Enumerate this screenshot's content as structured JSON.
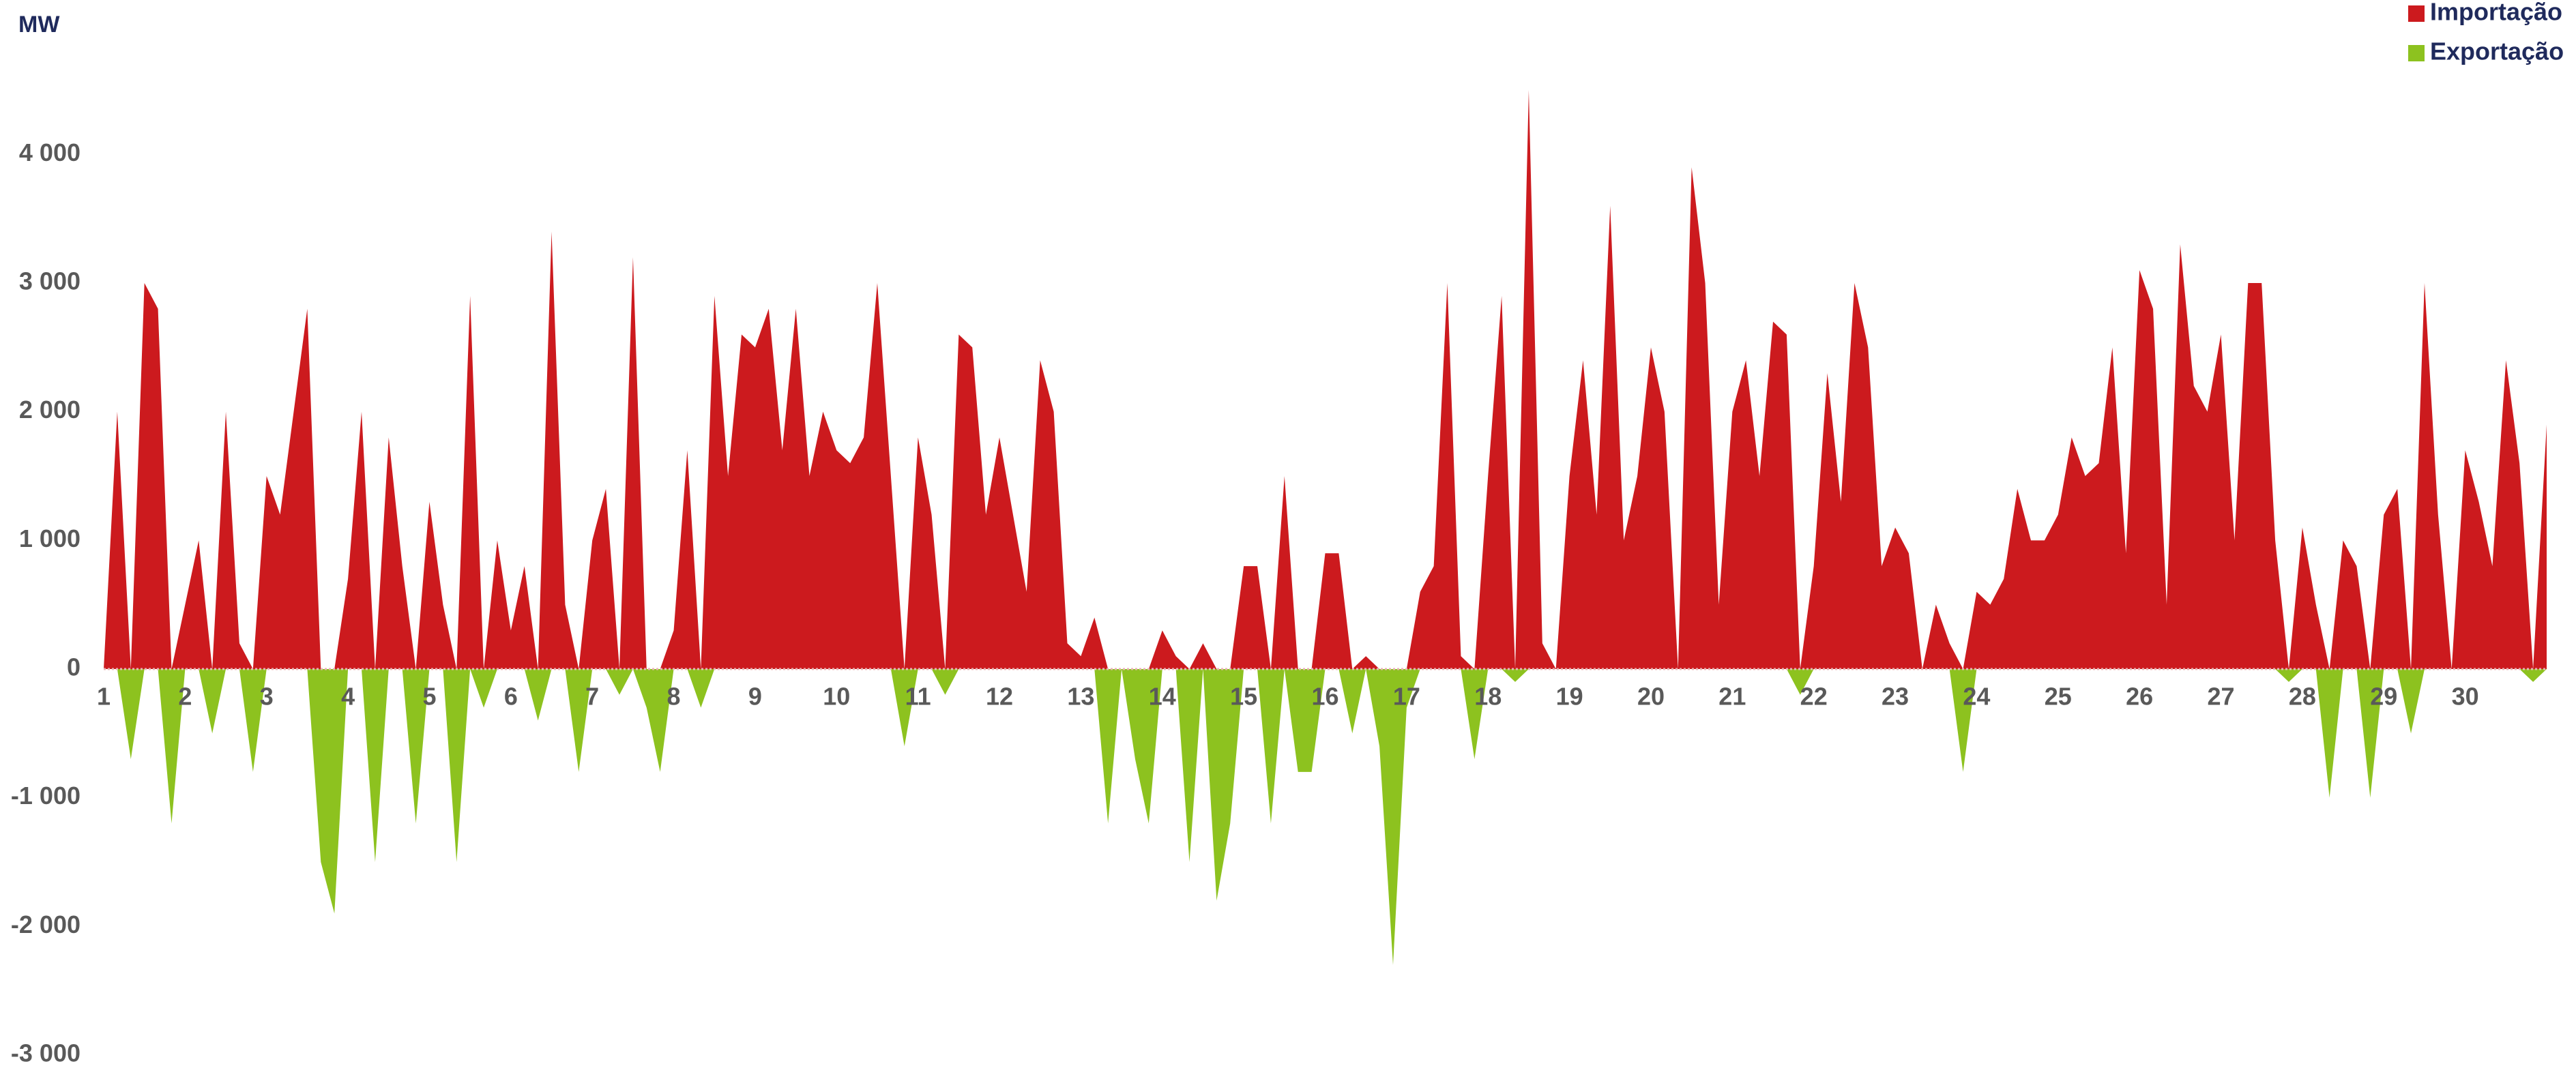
{
  "chart_data": {
    "type": "area",
    "y_label": "MW",
    "x": [
      0,
      4,
      8,
      12,
      16,
      20,
      24,
      28,
      32,
      36,
      40,
      44,
      48,
      52,
      56,
      60,
      64,
      68,
      72,
      76,
      80,
      84,
      88,
      92,
      96,
      100,
      104,
      108,
      112,
      116,
      120,
      124,
      128,
      132,
      136,
      140,
      144,
      148,
      152,
      156,
      160,
      164,
      168,
      172,
      176,
      180,
      184,
      188,
      192,
      196,
      200,
      204,
      208,
      212,
      216,
      220,
      224,
      228,
      232,
      236,
      240,
      244,
      248,
      252,
      256,
      260,
      264,
      268,
      272,
      276,
      280,
      284,
      288,
      292,
      296,
      300,
      304,
      308,
      312,
      316,
      320,
      324,
      328,
      332,
      336,
      340,
      344,
      348,
      352,
      356,
      360,
      364,
      368,
      372,
      376,
      380,
      384,
      388,
      392,
      396,
      400,
      404,
      408,
      412,
      416,
      420,
      424,
      428,
      432,
      436,
      440,
      444,
      448,
      452,
      456,
      460,
      464,
      468,
      472,
      476,
      480,
      484,
      488,
      492,
      496,
      500,
      504,
      508,
      512,
      516,
      520,
      524,
      528,
      532,
      536,
      540,
      544,
      548,
      552,
      556,
      560,
      564,
      568,
      572,
      576,
      580,
      584,
      588,
      592,
      596,
      600,
      604,
      608,
      612,
      616,
      620,
      624,
      628,
      632,
      636,
      640,
      644,
      648,
      652,
      656,
      660,
      664,
      668,
      672,
      676,
      680,
      684,
      688,
      692,
      696,
      700,
      704,
      708,
      712,
      716,
      720
    ],
    "series": [
      {
        "name": "Importação",
        "color": "#cc1a1e",
        "values": [
          0,
          2000,
          0,
          3000,
          2800,
          0,
          500,
          1000,
          0,
          2000,
          200,
          0,
          1500,
          1200,
          2000,
          2800,
          0,
          0,
          700,
          2000,
          0,
          1800,
          800,
          0,
          1300,
          500,
          0,
          2900,
          0,
          1000,
          300,
          800,
          0,
          3400,
          500,
          0,
          1000,
          1400,
          0,
          3200,
          0,
          0,
          300,
          1700,
          0,
          2900,
          1500,
          2600,
          2500,
          2800,
          1700,
          2800,
          1500,
          2000,
          1700,
          1600,
          1800,
          3000,
          1500,
          0,
          1800,
          1200,
          0,
          2600,
          2500,
          1200,
          1800,
          1200,
          600,
          2400,
          2000,
          200,
          100,
          400,
          0,
          0,
          0,
          0,
          300,
          100,
          0,
          200,
          0,
          0,
          800,
          800,
          0,
          1500,
          0,
          0,
          900,
          900,
          0,
          100,
          0,
          0,
          0,
          600,
          800,
          3000,
          100,
          0,
          1500,
          2900,
          0,
          4500,
          200,
          0,
          1500,
          2400,
          1200,
          3600,
          1000,
          1500,
          2500,
          2000,
          0,
          3900,
          3000,
          500,
          2000,
          2400,
          1500,
          2700,
          2600,
          0,
          800,
          2300,
          1300,
          3000,
          2500,
          800,
          1100,
          900,
          0,
          500,
          200,
          0,
          600,
          500,
          700,
          1400,
          1000,
          1000,
          1200,
          1800,
          1500,
          1600,
          2500,
          900,
          3100,
          2800,
          500,
          3300,
          2200,
          2000,
          2600,
          1000,
          3000,
          3000,
          1000,
          0,
          1100,
          500,
          0,
          1000,
          800,
          0,
          1200,
          1400,
          0,
          3000,
          1200,
          0,
          1700,
          1300,
          800,
          2400,
          1600,
          0,
          1900
        ]
      },
      {
        "name": "Exportação",
        "color": "#8dc21f",
        "values": [
          0,
          0,
          -700,
          0,
          0,
          -1200,
          0,
          0,
          -500,
          0,
          0,
          -800,
          0,
          0,
          0,
          0,
          -1500,
          -1900,
          0,
          0,
          -1500,
          0,
          0,
          -1200,
          0,
          0,
          -1500,
          0,
          -300,
          0,
          0,
          0,
          -400,
          0,
          0,
          -800,
          0,
          0,
          -200,
          0,
          -300,
          -800,
          0,
          0,
          -300,
          0,
          0,
          0,
          0,
          0,
          0,
          0,
          0,
          0,
          0,
          0,
          0,
          0,
          0,
          -600,
          0,
          0,
          -200,
          0,
          0,
          0,
          0,
          0,
          0,
          0,
          0,
          0,
          0,
          0,
          -1200,
          0,
          -700,
          -1200,
          0,
          0,
          -1500,
          0,
          -1800,
          -1200,
          0,
          0,
          -1200,
          0,
          -800,
          -800,
          0,
          0,
          -500,
          0,
          -600,
          -2300,
          -300,
          0,
          0,
          0,
          0,
          -700,
          0,
          0,
          -100,
          0,
          0,
          0,
          0,
          0,
          0,
          0,
          0,
          0,
          0,
          0,
          0,
          0,
          0,
          0,
          0,
          0,
          0,
          0,
          0,
          -200,
          0,
          0,
          0,
          0,
          0,
          0,
          0,
          0,
          0,
          0,
          0,
          -800,
          0,
          0,
          0,
          0,
          0,
          0,
          0,
          0,
          0,
          0,
          0,
          0,
          0,
          0,
          0,
          0,
          0,
          0,
          0,
          0,
          0,
          0,
          0,
          -100,
          0,
          0,
          -1000,
          0,
          0,
          -1000,
          0,
          0,
          -500,
          0,
          0,
          0,
          0,
          0,
          0,
          0,
          0,
          -100,
          0
        ]
      }
    ],
    "xlim": [
      0,
      720
    ],
    "xticks": [
      {
        "value": 0,
        "label": "1"
      },
      {
        "value": 24,
        "label": "2"
      },
      {
        "value": 48,
        "label": "3"
      },
      {
        "value": 72,
        "label": "4"
      },
      {
        "value": 96,
        "label": "5"
      },
      {
        "value": 120,
        "label": "6"
      },
      {
        "value": 144,
        "label": "7"
      },
      {
        "value": 168,
        "label": "8"
      },
      {
        "value": 192,
        "label": "9"
      },
      {
        "value": 216,
        "label": "10"
      },
      {
        "value": 240,
        "label": "11"
      },
      {
        "value": 264,
        "label": "12"
      },
      {
        "value": 288,
        "label": "13"
      },
      {
        "value": 312,
        "label": "14"
      },
      {
        "value": 336,
        "label": "15"
      },
      {
        "value": 360,
        "label": "16"
      },
      {
        "value": 384,
        "label": "17"
      },
      {
        "value": 408,
        "label": "18"
      },
      {
        "value": 432,
        "label": "19"
      },
      {
        "value": 456,
        "label": "20"
      },
      {
        "value": 480,
        "label": "21"
      },
      {
        "value": 504,
        "label": "22"
      },
      {
        "value": 528,
        "label": "23"
      },
      {
        "value": 552,
        "label": "24"
      },
      {
        "value": 576,
        "label": "25"
      },
      {
        "value": 600,
        "label": "26"
      },
      {
        "value": 624,
        "label": "27"
      },
      {
        "value": 648,
        "label": "28"
      },
      {
        "value": 672,
        "label": "29"
      },
      {
        "value": 696,
        "label": "30"
      }
    ],
    "ylim": [
      -3000,
      4500
    ],
    "yticks": [
      {
        "value": -3000,
        "label": "-3 000"
      },
      {
        "value": -2000,
        "label": "-2 000"
      },
      {
        "value": -1000,
        "label": "-1 000"
      },
      0,
      {
        "value": 1000,
        "label": "1 000"
      },
      {
        "value": 2000,
        "label": "2 000"
      },
      {
        "value": 3000,
        "label": "3 000"
      },
      {
        "value": 4000,
        "label": "4 000"
      }
    ],
    "grid": false,
    "legend": "top-right"
  }
}
